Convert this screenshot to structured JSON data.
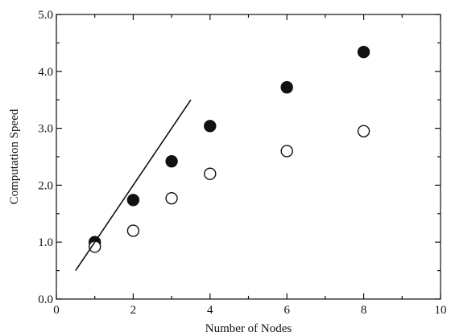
{
  "chart_data": {
    "type": "scatter",
    "xlabel": "Number of Nodes",
    "ylabel": "Computation Speed",
    "xlim": [
      0,
      10
    ],
    "ylim": [
      0.0,
      5.0
    ],
    "x_ticks": [
      0,
      2,
      4,
      6,
      8,
      10
    ],
    "x_tick_labels": [
      "0",
      "2",
      "4",
      "6",
      "8",
      "10"
    ],
    "y_ticks": [
      0.0,
      1.0,
      2.0,
      3.0,
      4.0,
      5.0
    ],
    "y_tick_labels": [
      "0.0",
      "1.0",
      "2.0",
      "3.0",
      "4.0",
      "5.0"
    ],
    "grid": false,
    "series": [
      {
        "marker": "filled-circle",
        "color": "#111111",
        "x": [
          1,
          2,
          3,
          4,
          6,
          8
        ],
        "y": [
          1.0,
          1.74,
          2.42,
          3.04,
          3.72,
          4.34
        ]
      },
      {
        "marker": "open-circle",
        "color": "#111111",
        "x": [
          1,
          2,
          3,
          4,
          6,
          8
        ],
        "y": [
          0.92,
          1.2,
          1.77,
          2.2,
          2.6,
          2.95
        ]
      },
      {
        "marker": "line",
        "color": "#111111",
        "x": [
          0.5,
          3.5
        ],
        "y": [
          0.5,
          3.5
        ]
      }
    ]
  }
}
